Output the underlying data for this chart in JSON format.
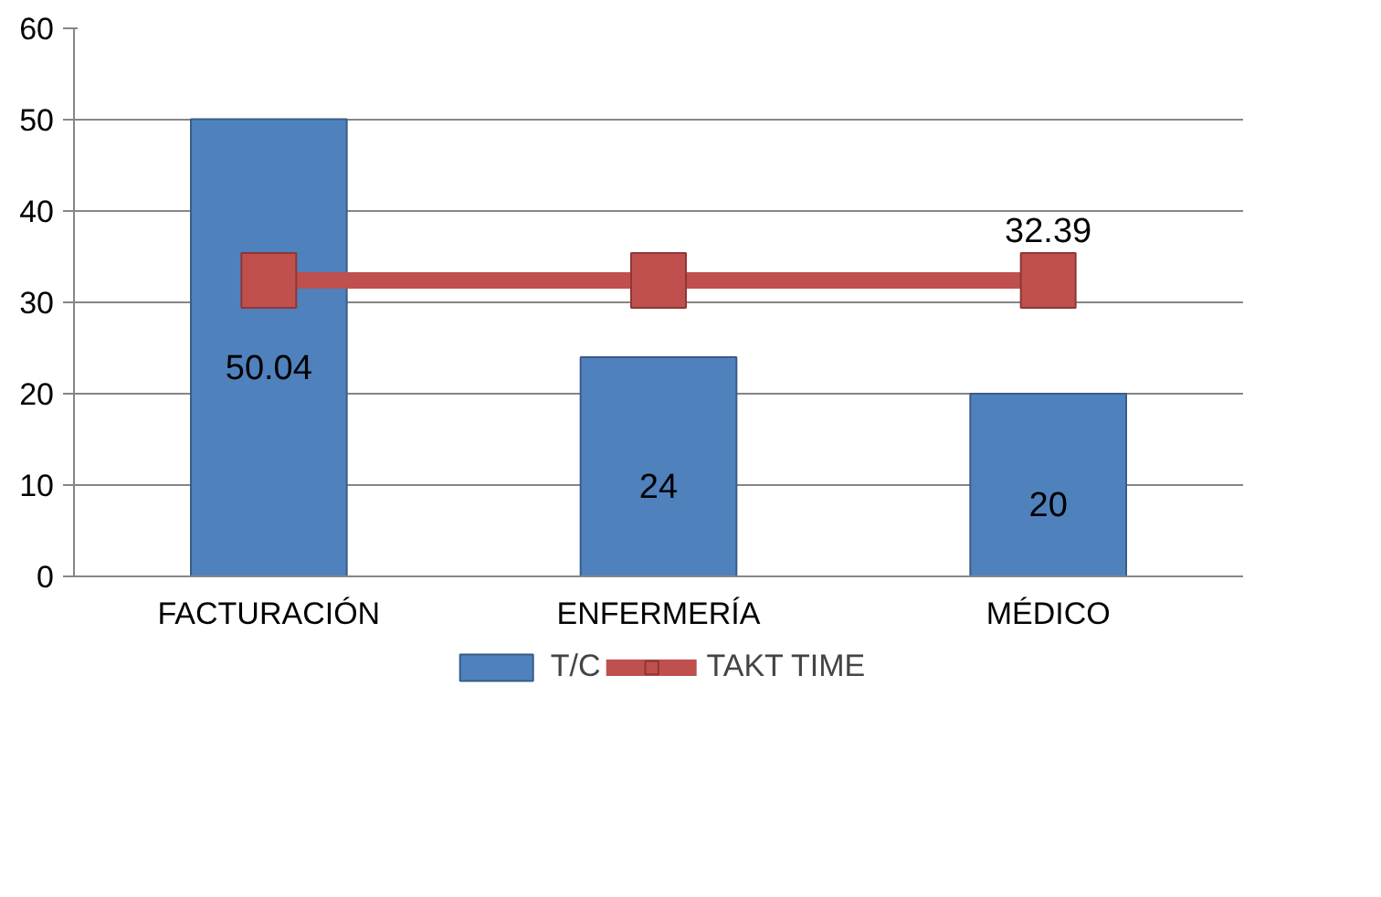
{
  "chart_data": {
    "type": "bar",
    "categories": [
      "FACTURACIÓN",
      "ENFERMERÍA",
      "MÉDICO"
    ],
    "series": [
      {
        "name": "T/C",
        "color": "#4f81bd",
        "values": [
          50.04,
          24,
          20
        ],
        "value_labels": [
          "50.04",
          "24",
          "20"
        ]
      },
      {
        "name": "TAKT TIME",
        "type": "line",
        "color": "#c0504d",
        "marker": "square",
        "values": [
          32.39,
          32.39,
          32.39
        ],
        "value_labels": [
          null,
          null,
          "32.39"
        ]
      }
    ],
    "ylim": [
      0,
      60
    ],
    "yticks": [
      0,
      10,
      20,
      30,
      40,
      50,
      60
    ],
    "grid": "y",
    "legend": "bottom"
  }
}
